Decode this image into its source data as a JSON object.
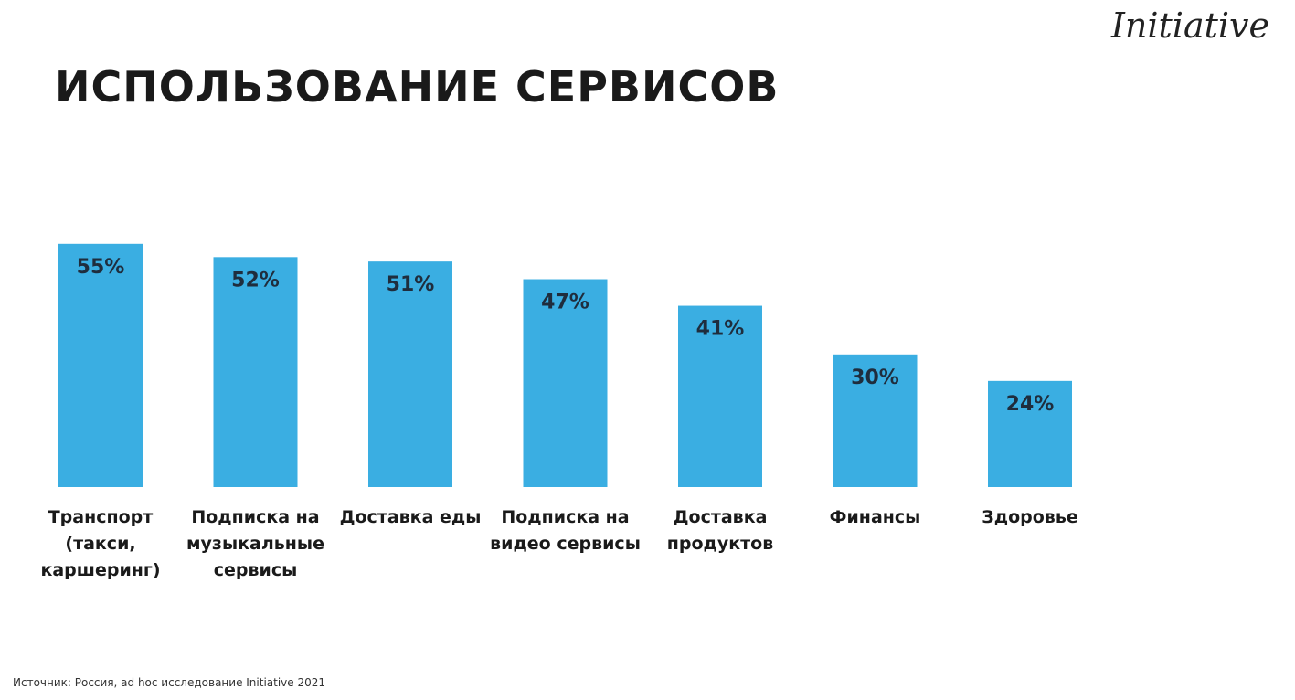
{
  "logo": "Initiative",
  "chart_data": {
    "type": "bar",
    "title": "ИСПОЛЬЗОВАНИЕ СЕРВИСОВ",
    "categories": [
      "Транспорт (такси, каршеринг)",
      "Подписка на музыкальные сервисы",
      "Доставка еды",
      "Подписка на видео сервисы",
      "Доставка продуктов",
      "Финансы",
      "Здоровье"
    ],
    "values": [
      55,
      52,
      51,
      47,
      41,
      30,
      24
    ],
    "value_labels": [
      "55%",
      "52%",
      "51%",
      "47%",
      "41%",
      "30%",
      "24%"
    ],
    "color": "#3aaee2",
    "source": "Источник:  Россия, ad hoc исследование Initiative 2021"
  }
}
